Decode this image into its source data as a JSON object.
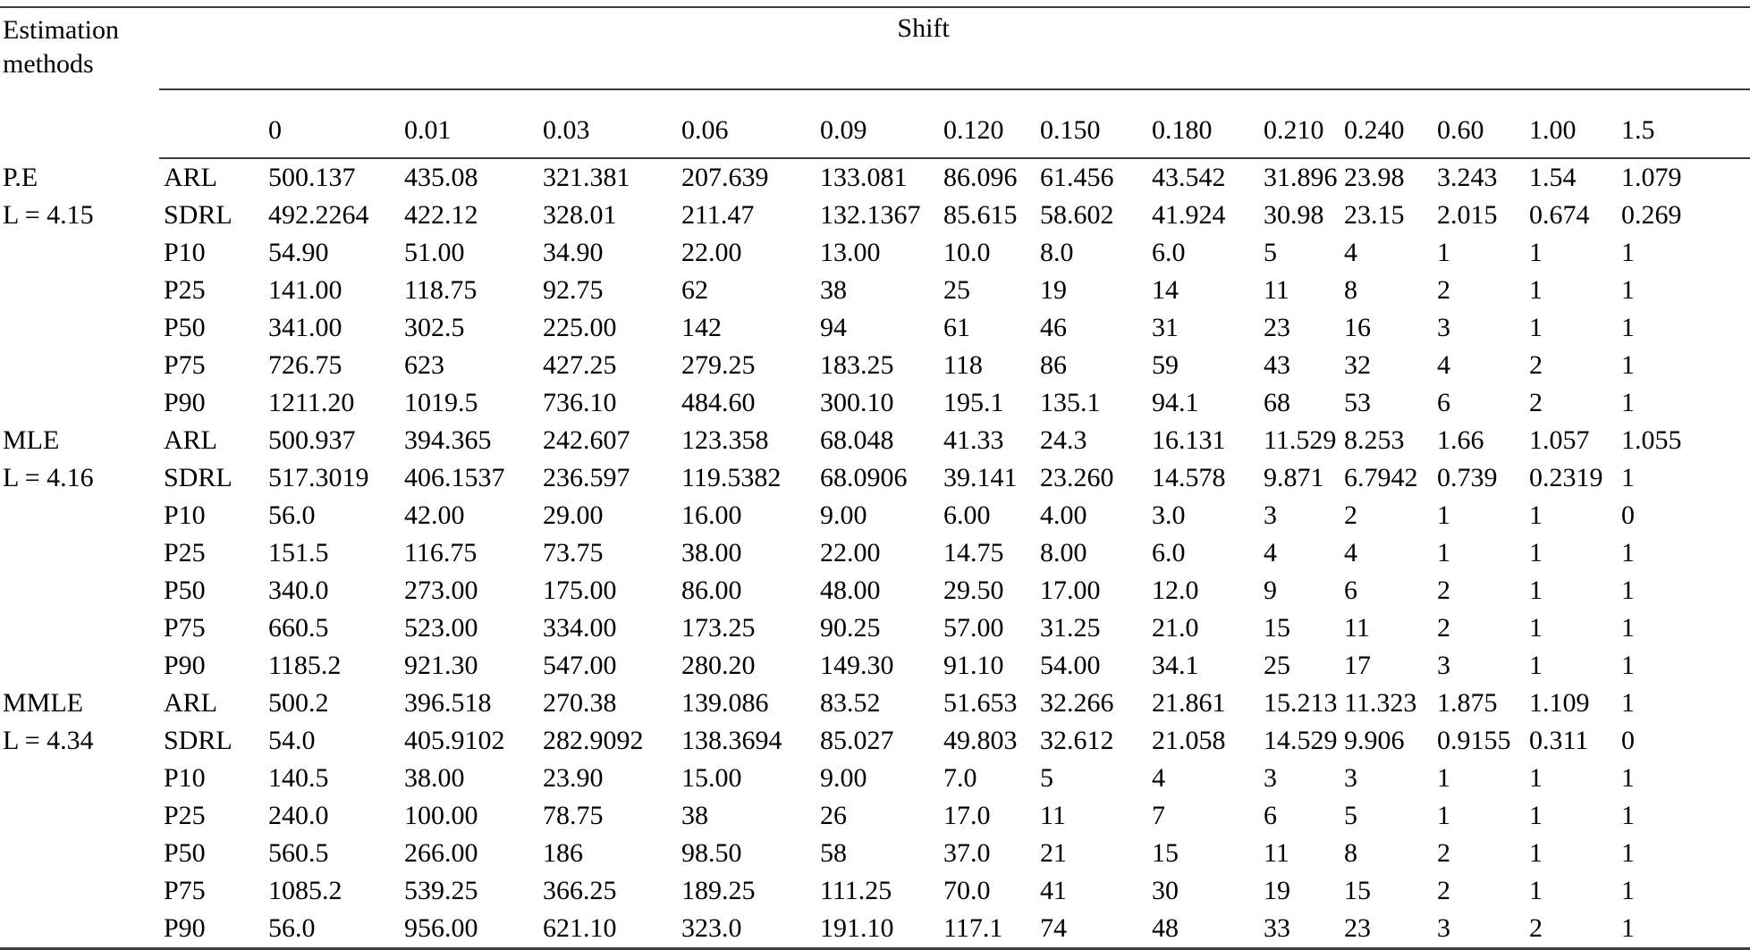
{
  "page": {
    "background": "#ffffff",
    "text_color": "#000000",
    "rule_color": "#3d3d3d"
  },
  "table": {
    "corner_header": {
      "line1": "Estimation",
      "line2": "methods"
    },
    "span_header": "Shift",
    "shift_levels": [
      "0",
      "0.01",
      "0.03",
      "0.06",
      "0.09",
      "0.120",
      "0.150",
      "0.180",
      "0.210",
      "0.240",
      "0.60",
      "1.00",
      "1.5"
    ],
    "groups": [
      {
        "method": "P.E",
        "limit": "L = 4.15",
        "rows": [
          {
            "label": "ARL",
            "values": [
              "500.137",
              "435.08",
              "321.381",
              "207.639",
              "133.081",
              "86.096",
              "61.456",
              "43.542",
              "31.896",
              "23.98",
              "3.243",
              "1.54",
              "1.079"
            ]
          },
          {
            "label": "SDRL",
            "values": [
              "492.2264",
              "422.12",
              "328.01",
              "211.47",
              "132.1367",
              "85.615",
              "58.602",
              "41.924",
              "30.98",
              "23.15",
              "2.015",
              "0.674",
              "0.269"
            ]
          },
          {
            "label": "P10",
            "values": [
              "54.90",
              "51.00",
              "34.90",
              "22.00",
              "13.00",
              "10.0",
              "8.0",
              "6.0",
              "5",
              "4",
              "1",
              "1",
              "1"
            ]
          },
          {
            "label": "P25",
            "values": [
              "141.00",
              "118.75",
              "92.75",
              "62",
              "38",
              "25",
              "19",
              "14",
              "11",
              "8",
              "2",
              "1",
              "1"
            ]
          },
          {
            "label": "P50",
            "values": [
              "341.00",
              "302.5",
              "225.00",
              "142",
              "94",
              "61",
              "46",
              "31",
              "23",
              "16",
              "3",
              "1",
              "1"
            ]
          },
          {
            "label": "P75",
            "values": [
              "726.75",
              "623",
              "427.25",
              "279.25",
              "183.25",
              "118",
              "86",
              "59",
              "43",
              "32",
              "4",
              "2",
              "1"
            ]
          },
          {
            "label": "P90",
            "values": [
              "1211.20",
              "1019.5",
              "736.10",
              "484.60",
              "300.10",
              "195.1",
              "135.1",
              "94.1",
              "68",
              "53",
              "6",
              "2",
              "1"
            ]
          }
        ]
      },
      {
        "method": "MLE",
        "limit": "L = 4.16",
        "rows": [
          {
            "label": "ARL",
            "values": [
              "500.937",
              "394.365",
              "242.607",
              "123.358",
              "68.048",
              "41.33",
              "24.3",
              "16.131",
              "11.529",
              "8.253",
              "1.66",
              "1.057",
              "1.055"
            ]
          },
          {
            "label": "SDRL",
            "values": [
              "517.3019",
              "406.1537",
              "236.597",
              "119.5382",
              "68.0906",
              "39.141",
              "23.260",
              "14.578",
              "9.871",
              "6.7942",
              "0.739",
              "0.2319",
              "1"
            ]
          },
          {
            "label": "P10",
            "values": [
              "56.0",
              "42.00",
              "29.00",
              "16.00",
              "9.00",
              "6.00",
              "4.00",
              "3.0",
              "3",
              "2",
              "1",
              "1",
              "0"
            ]
          },
          {
            "label": "P25",
            "values": [
              "151.5",
              "116.75",
              "73.75",
              "38.00",
              "22.00",
              "14.75",
              "8.00",
              "6.0",
              "4",
              "4",
              "1",
              "1",
              "1"
            ]
          },
          {
            "label": "P50",
            "values": [
              "340.0",
              "273.00",
              "175.00",
              "86.00",
              "48.00",
              "29.50",
              "17.00",
              "12.0",
              "9",
              "6",
              "2",
              "1",
              "1"
            ]
          },
          {
            "label": "P75",
            "values": [
              "660.5",
              "523.00",
              "334.00",
              "173.25",
              "90.25",
              "57.00",
              "31.25",
              "21.0",
              "15",
              "11",
              "2",
              "1",
              "1"
            ]
          },
          {
            "label": "P90",
            "values": [
              "1185.2",
              "921.30",
              "547.00",
              "280.20",
              "149.30",
              "91.10",
              "54.00",
              "34.1",
              "25",
              "17",
              "3",
              "1",
              "1"
            ]
          }
        ]
      },
      {
        "method": "MMLE",
        "limit": "L = 4.34",
        "rows": [
          {
            "label": "ARL",
            "values": [
              "500.2",
              "396.518",
              "270.38",
              "139.086",
              "83.52",
              "51.653",
              "32.266",
              "21.861",
              "15.213",
              "11.323",
              "1.875",
              "1.109",
              "1"
            ]
          },
          {
            "label": "SDRL",
            "values": [
              "54.0",
              "405.9102",
              "282.9092",
              "138.3694",
              "85.027",
              "49.803",
              "32.612",
              "21.058",
              "14.529",
              "9.906",
              "0.9155",
              "0.311",
              "0"
            ]
          },
          {
            "label": "P10",
            "values": [
              "140.5",
              "38.00",
              "23.90",
              "15.00",
              "9.00",
              "7.0",
              "5",
              "4",
              "3",
              "3",
              "1",
              "1",
              "1"
            ]
          },
          {
            "label": "P25",
            "values": [
              "240.0",
              "100.00",
              "78.75",
              "38",
              "26",
              "17.0",
              "11",
              "7",
              "6",
              "5",
              "1",
              "1",
              "1"
            ]
          },
          {
            "label": "P50",
            "values": [
              "560.5",
              "266.00",
              "186",
              "98.50",
              "58",
              "37.0",
              "21",
              "15",
              "11",
              "8",
              "2",
              "1",
              "1"
            ]
          },
          {
            "label": "P75",
            "values": [
              "1085.2",
              "539.25",
              "366.25",
              "189.25",
              "111.25",
              "70.0",
              "41",
              "30",
              "19",
              "15",
              "2",
              "1",
              "1"
            ]
          },
          {
            "label": "P90",
            "values": [
              "56.0",
              "956.00",
              "621.10",
              "323.0",
              "191.10",
              "117.1",
              "74",
              "48",
              "33",
              "23",
              "3",
              "2",
              "1"
            ]
          }
        ]
      }
    ]
  }
}
